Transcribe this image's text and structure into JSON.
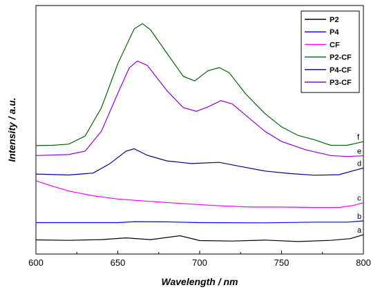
{
  "chart_data": {
    "type": "line",
    "title": "",
    "xlabel": "Wavelength / nm",
    "ylabel": "Intensity / a.u.",
    "xlim": [
      600,
      800
    ],
    "ylim": [
      0,
      1
    ],
    "x_ticks": [
      "600",
      "650",
      "700",
      "750",
      "800"
    ],
    "y_ticks_visible": false,
    "grid": false,
    "legend_position": "top-right",
    "series": [
      {
        "name": "P2",
        "color": "#000000",
        "tag": "a",
        "points": [
          [
            600,
            0.047
          ],
          [
            620,
            0.045
          ],
          [
            640,
            0.048
          ],
          [
            655,
            0.055
          ],
          [
            670,
            0.048
          ],
          [
            688,
            0.064
          ],
          [
            700,
            0.044
          ],
          [
            720,
            0.042
          ],
          [
            740,
            0.046
          ],
          [
            760,
            0.04
          ],
          [
            780,
            0.045
          ],
          [
            792,
            0.052
          ],
          [
            800,
            0.068
          ]
        ]
      },
      {
        "name": "P4",
        "color": "#0000ff",
        "tag": "b",
        "points": [
          [
            600,
            0.118
          ],
          [
            650,
            0.118
          ],
          [
            660,
            0.122
          ],
          [
            680,
            0.121
          ],
          [
            700,
            0.118
          ],
          [
            740,
            0.117
          ],
          [
            770,
            0.12
          ],
          [
            790,
            0.12
          ],
          [
            800,
            0.125
          ]
        ]
      },
      {
        "name": "CF",
        "color": "#ff00ff",
        "tag": "c",
        "points": [
          [
            600,
            0.29
          ],
          [
            610,
            0.268
          ],
          [
            620,
            0.248
          ],
          [
            635,
            0.228
          ],
          [
            650,
            0.215
          ],
          [
            670,
            0.205
          ],
          [
            690,
            0.196
          ],
          [
            710,
            0.188
          ],
          [
            730,
            0.182
          ],
          [
            750,
            0.182
          ],
          [
            770,
            0.18
          ],
          [
            785,
            0.18
          ],
          [
            795,
            0.19
          ],
          [
            800,
            0.2
          ]
        ]
      },
      {
        "name": "P2-CF",
        "color": "#006400",
        "tag": "f",
        "points": [
          [
            600,
            0.435
          ],
          [
            610,
            0.436
          ],
          [
            620,
            0.441
          ],
          [
            630,
            0.474
          ],
          [
            640,
            0.591
          ],
          [
            650,
            0.772
          ],
          [
            660,
            0.915
          ],
          [
            665,
            0.937
          ],
          [
            670,
            0.911
          ],
          [
            680,
            0.815
          ],
          [
            690,
            0.72
          ],
          [
            697,
            0.701
          ],
          [
            705,
            0.743
          ],
          [
            712,
            0.756
          ],
          [
            718,
            0.735
          ],
          [
            728,
            0.648
          ],
          [
            740,
            0.566
          ],
          [
            750,
            0.512
          ],
          [
            760,
            0.477
          ],
          [
            770,
            0.459
          ],
          [
            780,
            0.436
          ],
          [
            790,
            0.436
          ],
          [
            800,
            0.451
          ]
        ]
      },
      {
        "name": "P4-CF",
        "color": "#000080",
        "tag": "d",
        "points": [
          [
            600,
            0.318
          ],
          [
            620,
            0.314
          ],
          [
            635,
            0.322
          ],
          [
            645,
            0.36
          ],
          [
            655,
            0.412
          ],
          [
            660,
            0.422
          ],
          [
            668,
            0.395
          ],
          [
            680,
            0.372
          ],
          [
            695,
            0.361
          ],
          [
            712,
            0.366
          ],
          [
            725,
            0.349
          ],
          [
            740,
            0.33
          ],
          [
            755,
            0.32
          ],
          [
            770,
            0.313
          ],
          [
            785,
            0.315
          ],
          [
            800,
            0.343
          ]
        ]
      },
      {
        "name": "P3-CF",
        "color": "#9400d3",
        "tag": "e",
        "points": [
          [
            600,
            0.394
          ],
          [
            620,
            0.398
          ],
          [
            630,
            0.412
          ],
          [
            640,
            0.494
          ],
          [
            650,
            0.65
          ],
          [
            657,
            0.755
          ],
          [
            662,
            0.783
          ],
          [
            668,
            0.765
          ],
          [
            680,
            0.661
          ],
          [
            690,
            0.591
          ],
          [
            698,
            0.576
          ],
          [
            705,
            0.594
          ],
          [
            713,
            0.62
          ],
          [
            720,
            0.606
          ],
          [
            730,
            0.549
          ],
          [
            740,
            0.493
          ],
          [
            750,
            0.452
          ],
          [
            765,
            0.417
          ],
          [
            780,
            0.394
          ],
          [
            790,
            0.39
          ],
          [
            800,
            0.393
          ]
        ]
      }
    ]
  }
}
